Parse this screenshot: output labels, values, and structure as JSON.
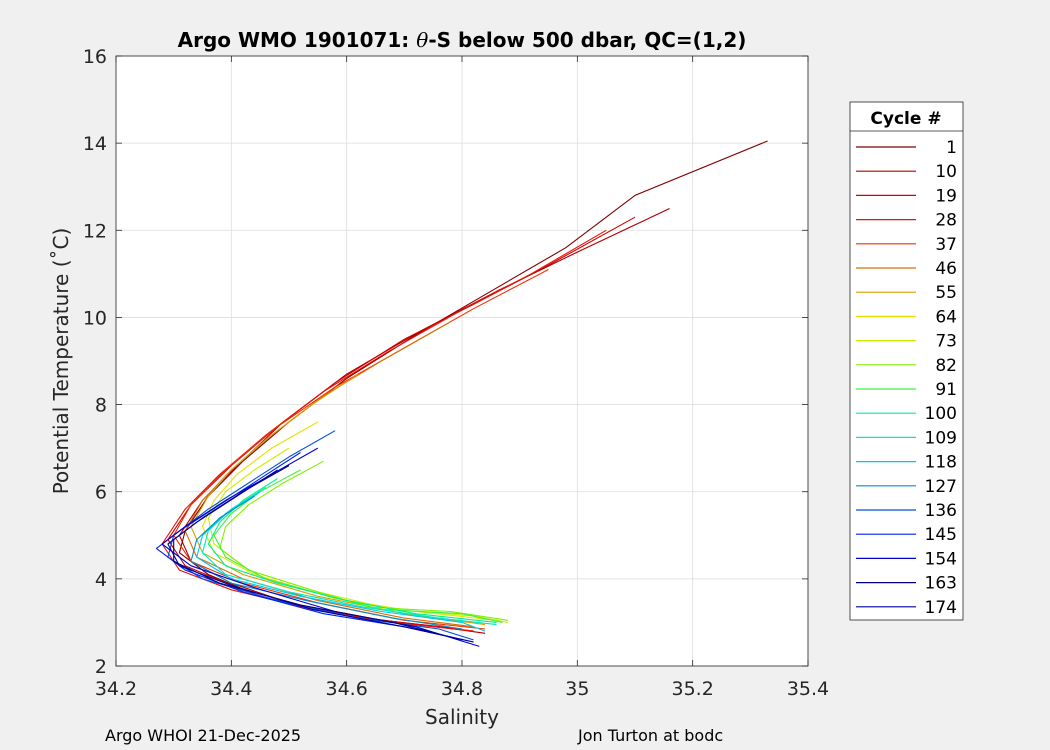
{
  "chart_data": {
    "type": "line",
    "title": "Argo WMO 1901071: θ-S below 500 dbar,  QC=(1,2)",
    "title_prefix": "Argo WMO 1901071: ",
    "title_theta": "θ",
    "title_suffix": "-S below 500 dbar,  QC=(1,2)",
    "xlabel": "Salinity",
    "ylabel": "Potential Temperature (˚C)",
    "xlim": [
      34.2,
      35.4
    ],
    "ylim": [
      2,
      16
    ],
    "xticks": [
      34.2,
      34.4,
      34.6,
      34.8,
      35,
      35.2,
      35.4
    ],
    "xtick_labels": [
      "34.2",
      "34.4",
      "34.6",
      "34.8",
      "35",
      "35.2",
      "35.4"
    ],
    "yticks": [
      2,
      4,
      6,
      8,
      10,
      12,
      14,
      16
    ],
    "ytick_labels": [
      "2",
      "4",
      "6",
      "8",
      "10",
      "12",
      "14",
      "16"
    ],
    "grid": true,
    "legend_title": "Cycle #",
    "legend_position": "right-outside",
    "series": [
      {
        "name": "1",
        "color": "#800000",
        "points": [
          [
            35.33,
            14.05
          ],
          [
            35.1,
            12.8
          ],
          [
            34.98,
            11.6
          ],
          [
            34.85,
            10.6
          ],
          [
            34.72,
            9.6
          ],
          [
            34.6,
            8.6
          ],
          [
            34.5,
            7.6
          ],
          [
            34.42,
            6.7
          ],
          [
            34.36,
            5.9
          ],
          [
            34.32,
            5.1
          ],
          [
            34.31,
            4.6
          ],
          [
            34.36,
            4.1
          ],
          [
            34.45,
            3.6
          ],
          [
            34.58,
            3.2
          ],
          [
            34.72,
            2.95
          ],
          [
            34.82,
            2.8
          ]
        ]
      },
      {
        "name": "10",
        "color": "#b00000",
        "points": [
          [
            35.16,
            12.5
          ],
          [
            35.0,
            11.5
          ],
          [
            34.86,
            10.6
          ],
          [
            34.73,
            9.7
          ],
          [
            34.6,
            8.7
          ],
          [
            34.49,
            7.6
          ],
          [
            34.41,
            6.6
          ],
          [
            34.35,
            5.8
          ],
          [
            34.31,
            5.0
          ],
          [
            34.33,
            4.4
          ],
          [
            34.4,
            3.9
          ],
          [
            34.5,
            3.45
          ],
          [
            34.63,
            3.1
          ],
          [
            34.76,
            2.9
          ],
          [
            34.84,
            2.75
          ]
        ]
      },
      {
        "name": "19",
        "color": "#d00000",
        "points": [
          [
            35.1,
            12.3
          ],
          [
            34.95,
            11.2
          ],
          [
            34.82,
            10.3
          ],
          [
            34.7,
            9.5
          ],
          [
            34.58,
            8.5
          ],
          [
            34.48,
            7.5
          ],
          [
            34.4,
            6.6
          ],
          [
            34.33,
            5.7
          ],
          [
            34.29,
            4.9
          ],
          [
            34.32,
            4.3
          ],
          [
            34.41,
            3.8
          ],
          [
            34.52,
            3.4
          ],
          [
            34.66,
            3.05
          ],
          [
            34.8,
            2.85
          ]
        ]
      },
      {
        "name": "28",
        "color": "#ee1000",
        "points": [
          [
            35.05,
            12.0
          ],
          [
            34.92,
            11.0
          ],
          [
            34.79,
            10.1
          ],
          [
            34.67,
            9.2
          ],
          [
            34.56,
            8.3
          ],
          [
            34.46,
            7.3
          ],
          [
            34.38,
            6.4
          ],
          [
            34.32,
            5.6
          ],
          [
            34.28,
            4.8
          ],
          [
            34.31,
            4.2
          ],
          [
            34.4,
            3.75
          ],
          [
            34.54,
            3.3
          ],
          [
            34.68,
            3.0
          ],
          [
            34.82,
            2.8
          ]
        ]
      },
      {
        "name": "37",
        "color": "#f03000",
        "points": [
          [
            34.95,
            11.1
          ],
          [
            34.82,
            10.2
          ],
          [
            34.7,
            9.3
          ],
          [
            34.58,
            8.4
          ],
          [
            34.47,
            7.4
          ],
          [
            34.39,
            6.5
          ],
          [
            34.33,
            5.7
          ],
          [
            34.3,
            5.0
          ],
          [
            34.33,
            4.4
          ],
          [
            34.42,
            3.9
          ],
          [
            34.55,
            3.45
          ],
          [
            34.7,
            3.05
          ],
          [
            34.84,
            2.85
          ]
        ]
      },
      {
        "name": "46",
        "color": "#d86e00",
        "points": [
          [
            34.78,
            9.9
          ],
          [
            34.66,
            9.0
          ],
          [
            34.56,
            8.2
          ],
          [
            34.47,
            7.3
          ],
          [
            34.4,
            6.5
          ],
          [
            34.35,
            5.8
          ],
          [
            34.32,
            5.1
          ],
          [
            34.34,
            4.5
          ],
          [
            34.42,
            4.0
          ],
          [
            34.55,
            3.5
          ],
          [
            34.7,
            3.1
          ],
          [
            34.82,
            2.9
          ]
        ]
      },
      {
        "name": "55",
        "color": "#d8a000",
        "points": [
          [
            34.62,
            8.7
          ],
          [
            34.54,
            8.0
          ],
          [
            34.46,
            7.2
          ],
          [
            34.4,
            6.5
          ],
          [
            34.36,
            5.9
          ],
          [
            34.33,
            5.2
          ],
          [
            34.35,
            4.6
          ],
          [
            34.42,
            4.1
          ],
          [
            34.55,
            3.6
          ],
          [
            34.7,
            3.2
          ],
          [
            34.84,
            2.95
          ]
        ]
      },
      {
        "name": "64",
        "color": "#e8e000",
        "points": [
          [
            34.55,
            7.6
          ],
          [
            34.47,
            7.0
          ],
          [
            34.41,
            6.4
          ],
          [
            34.37,
            5.8
          ],
          [
            34.35,
            5.2
          ],
          [
            34.37,
            4.6
          ],
          [
            34.44,
            4.1
          ],
          [
            34.58,
            3.55
          ],
          [
            34.72,
            3.25
          ],
          [
            34.86,
            3.05
          ]
        ]
      },
      {
        "name": "73",
        "color": "#c8f000",
        "points": [
          [
            34.5,
            7.0
          ],
          [
            34.44,
            6.5
          ],
          [
            34.39,
            6.0
          ],
          [
            34.36,
            5.4
          ],
          [
            34.37,
            4.8
          ],
          [
            34.43,
            4.2
          ],
          [
            34.55,
            3.7
          ],
          [
            34.68,
            3.3
          ],
          [
            34.82,
            3.15
          ],
          [
            34.88,
            3.0
          ]
        ]
      },
      {
        "name": "82",
        "color": "#80f000",
        "points": [
          [
            34.56,
            6.7
          ],
          [
            34.49,
            6.2
          ],
          [
            34.43,
            5.7
          ],
          [
            34.39,
            5.2
          ],
          [
            34.38,
            4.7
          ],
          [
            34.43,
            4.2
          ],
          [
            34.55,
            3.7
          ],
          [
            34.64,
            3.35
          ],
          [
            34.78,
            3.25
          ],
          [
            34.88,
            3.05
          ]
        ]
      },
      {
        "name": "91",
        "color": "#40f040",
        "points": [
          [
            34.52,
            6.5
          ],
          [
            34.45,
            6.0
          ],
          [
            34.4,
            5.5
          ],
          [
            34.37,
            5.0
          ],
          [
            34.39,
            4.5
          ],
          [
            34.46,
            4.0
          ],
          [
            34.57,
            3.6
          ],
          [
            34.66,
            3.3
          ],
          [
            34.8,
            3.2
          ],
          [
            34.87,
            3.0
          ]
        ]
      },
      {
        "name": "100",
        "color": "#00f090",
        "points": [
          [
            34.48,
            6.3
          ],
          [
            34.42,
            5.8
          ],
          [
            34.38,
            5.3
          ],
          [
            34.36,
            4.8
          ],
          [
            34.39,
            4.3
          ],
          [
            34.48,
            3.9
          ],
          [
            34.6,
            3.5
          ],
          [
            34.72,
            3.2
          ],
          [
            34.86,
            3.0
          ]
        ]
      },
      {
        "name": "109",
        "color": "#00e8c8",
        "points": [
          [
            34.46,
            6.1
          ],
          [
            34.4,
            5.6
          ],
          [
            34.36,
            5.1
          ],
          [
            34.35,
            4.6
          ],
          [
            34.39,
            4.1
          ],
          [
            34.5,
            3.7
          ],
          [
            34.63,
            3.35
          ],
          [
            34.76,
            3.1
          ],
          [
            34.86,
            2.95
          ]
        ]
      },
      {
        "name": "118",
        "color": "#00c8e8",
        "points": [
          [
            34.45,
            6.0
          ],
          [
            34.39,
            5.5
          ],
          [
            34.35,
            5.0
          ],
          [
            34.34,
            4.5
          ],
          [
            34.4,
            4.0
          ],
          [
            34.52,
            3.6
          ],
          [
            34.66,
            3.25
          ],
          [
            34.8,
            3.0
          ],
          [
            34.84,
            2.8
          ]
        ]
      },
      {
        "name": "127",
        "color": "#0090c8",
        "points": [
          [
            34.44,
            5.9
          ],
          [
            34.38,
            5.4
          ],
          [
            34.34,
            4.9
          ],
          [
            34.33,
            4.4
          ],
          [
            34.4,
            3.9
          ],
          [
            34.53,
            3.5
          ],
          [
            34.68,
            3.1
          ],
          [
            34.8,
            2.85
          ]
        ]
      },
      {
        "name": "136",
        "color": "#0050e0",
        "points": [
          [
            34.58,
            7.4
          ],
          [
            34.5,
            6.8
          ],
          [
            34.43,
            6.2
          ],
          [
            34.36,
            5.6
          ],
          [
            34.3,
            5.0
          ],
          [
            34.29,
            4.5
          ],
          [
            34.35,
            4.0
          ],
          [
            34.48,
            3.5
          ],
          [
            34.62,
            3.1
          ],
          [
            34.76,
            2.85
          ],
          [
            34.82,
            2.6
          ]
        ]
      },
      {
        "name": "145",
        "color": "#0020f0",
        "points": [
          [
            34.52,
            6.9
          ],
          [
            34.45,
            6.3
          ],
          [
            34.38,
            5.7
          ],
          [
            34.31,
            5.1
          ],
          [
            34.27,
            4.7
          ],
          [
            34.32,
            4.2
          ],
          [
            34.42,
            3.7
          ],
          [
            34.56,
            3.2
          ],
          [
            34.7,
            2.9
          ],
          [
            34.82,
            2.55
          ]
        ]
      },
      {
        "name": "154",
        "color": "#0000d0",
        "points": [
          [
            34.55,
            7.0
          ],
          [
            34.47,
            6.4
          ],
          [
            34.39,
            5.8
          ],
          [
            34.32,
            5.2
          ],
          [
            34.28,
            4.8
          ],
          [
            34.33,
            4.3
          ],
          [
            34.44,
            3.8
          ],
          [
            34.58,
            3.25
          ],
          [
            34.72,
            2.9
          ],
          [
            34.83,
            2.45
          ]
        ]
      },
      {
        "name": "163",
        "color": "#000080",
        "points": [
          [
            34.5,
            6.6
          ],
          [
            34.42,
            6.0
          ],
          [
            34.35,
            5.4
          ],
          [
            34.3,
            4.9
          ],
          [
            34.3,
            4.4
          ],
          [
            34.38,
            3.9
          ],
          [
            34.52,
            3.4
          ],
          [
            34.68,
            3.0
          ],
          [
            34.8,
            2.6
          ]
        ]
      },
      {
        "name": "174",
        "color": "#0000a0",
        "points": [
          [
            34.48,
            6.5
          ],
          [
            34.41,
            5.9
          ],
          [
            34.34,
            5.3
          ],
          [
            34.29,
            4.8
          ],
          [
            34.31,
            4.3
          ],
          [
            34.4,
            3.85
          ],
          [
            34.54,
            3.3
          ],
          [
            34.7,
            2.9
          ],
          [
            34.82,
            2.55
          ]
        ]
      }
    ]
  },
  "footer": {
    "left": "Argo WHOI 21-Dec-2025",
    "right": "Jon Turton at bodc"
  }
}
